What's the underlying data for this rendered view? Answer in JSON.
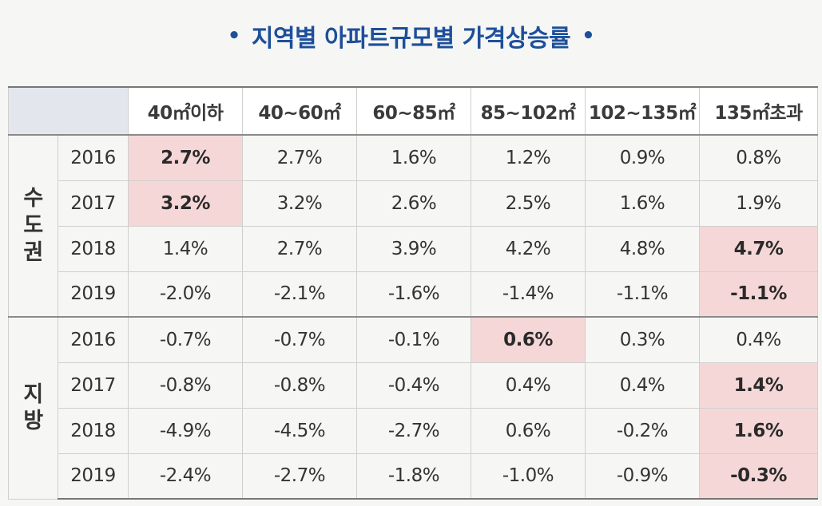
{
  "title": "지역별 아파트규모별 가격상승률",
  "title_dot": "•",
  "columns": [
    "40㎡이하",
    "40~60㎡",
    "60~85㎡",
    "85~102㎡",
    "102~135㎡",
    "135㎡초과"
  ],
  "groups": [
    {
      "region": "수\n도\n권",
      "rows": [
        {
          "year": "2016",
          "values": [
            "2.7%",
            "2.7%",
            "1.6%",
            "1.2%",
            "0.9%",
            "0.8%"
          ],
          "highlight": [
            0
          ]
        },
        {
          "year": "2017",
          "values": [
            "3.2%",
            "3.2%",
            "2.6%",
            "2.5%",
            "1.6%",
            "1.9%"
          ],
          "highlight": [
            0
          ]
        },
        {
          "year": "2018",
          "values": [
            "1.4%",
            "2.7%",
            "3.9%",
            "4.2%",
            "4.8%",
            "4.7%"
          ],
          "highlight": [
            5
          ]
        },
        {
          "year": "2019",
          "values": [
            "-2.0%",
            "-2.1%",
            "-1.6%",
            "-1.4%",
            "-1.1%",
            "-1.1%"
          ],
          "highlight": [
            5
          ]
        }
      ]
    },
    {
      "region": "지\n방",
      "rows": [
        {
          "year": "2016",
          "values": [
            "-0.7%",
            "-0.7%",
            "-0.1%",
            "0.6%",
            "0.3%",
            "0.4%"
          ],
          "highlight": [
            3
          ]
        },
        {
          "year": "2017",
          "values": [
            "-0.8%",
            "-0.8%",
            "-0.4%",
            "0.4%",
            "0.4%",
            "1.4%"
          ],
          "highlight": [
            5
          ]
        },
        {
          "year": "2018",
          "values": [
            "-4.9%",
            "-4.5%",
            "-2.7%",
            "0.6%",
            "-0.2%",
            "1.6%"
          ],
          "highlight": [
            5
          ]
        },
        {
          "year": "2019",
          "values": [
            "-2.4%",
            "-2.7%",
            "-1.8%",
            "-1.0%",
            "-0.9%",
            "-0.3%"
          ],
          "highlight": [
            5
          ]
        }
      ]
    }
  ],
  "colors": {
    "title": "#1d4f9a",
    "highlight": "#f6d7d7",
    "header_corner": "#e3e7ed"
  }
}
